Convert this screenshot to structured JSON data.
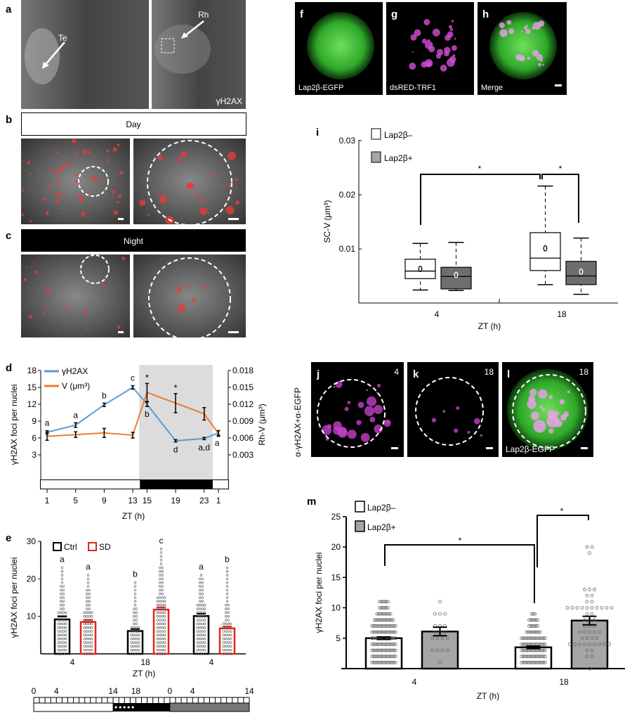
{
  "panel_letters": {
    "a": "a",
    "b": "b",
    "c": "c",
    "d": "d",
    "e": "e",
    "f": "f",
    "g": "g",
    "h": "h",
    "i": "i",
    "j": "j",
    "k": "k",
    "l": "l",
    "m": "m"
  },
  "panel_a": {
    "te": "Te",
    "rh": "Rh",
    "stain": "γH2AX"
  },
  "panel_b": {
    "label": "Day"
  },
  "panel_c": {
    "label": "Night"
  },
  "panel_fgh": {
    "f": "Lap2β-EGFP",
    "g": "dsRED-TRF1",
    "h": "Merge"
  },
  "panel_jkl": {
    "ylabel": "α-γH2AX+α-EGFP",
    "j_zt": "4",
    "k_zt": "18",
    "l_zt": "18",
    "l_label": "Lap2β-EGFP"
  },
  "colors": {
    "blue": "#5b9bd5",
    "orange": "#ed7d31",
    "red": "#e0261c",
    "gray": "#a6a6a6",
    "darkgray": "#6e6e6e",
    "shade": "#dcdcdc"
  },
  "chart_data": [
    {
      "id": "d",
      "type": "line",
      "xlabel": "ZT (h)",
      "ylabel": "γH2AX foci per nuclei",
      "y2label": "Rh-V (μm³)",
      "x": [
        1,
        5,
        9,
        13,
        15,
        19,
        23,
        25
      ],
      "xticklabels": [
        "1",
        "5",
        "9",
        "13",
        "15",
        "19",
        "23",
        "1"
      ],
      "ylim": [
        0,
        18
      ],
      "yticks": [
        3,
        6,
        9,
        12,
        15,
        18
      ],
      "y2lim": [
        0,
        0.018
      ],
      "y2ticks": [
        "0.003",
        "0.006",
        "0.009",
        "0.012",
        "0.015",
        "0.018"
      ],
      "night_shade": [
        14,
        24
      ],
      "series": [
        {
          "name": "γH2AX",
          "values": [
            7,
            8.3,
            11.9,
            15,
            12,
            5.5,
            5.9,
            6.9
          ],
          "err": [
            0.3,
            0.4,
            0.3,
            0.3,
            0.4,
            0.2,
            0.2,
            0.4
          ],
          "labels": [
            "a",
            "a",
            "b",
            "c",
            "b",
            "d",
            "a,d",
            "a"
          ],
          "label_pos": [
            "above",
            "above",
            "above",
            "above",
            "below",
            "below",
            "below",
            "below"
          ]
        },
        {
          "name": "V (μm³)",
          "scale": "y2",
          "values": [
            0.0063,
            0.0066,
            0.0069,
            0.0065,
            0.0141,
            0.0122,
            0.0103,
            0.0068
          ],
          "err": [
            0.0007,
            0.0005,
            0.0008,
            0.0005,
            0.0016,
            0.0017,
            0.0011,
            0.0005
          ],
          "stars": [
            "",
            "",
            "",
            "",
            "*",
            "*",
            "",
            ""
          ]
        }
      ]
    },
    {
      "id": "e",
      "type": "bar",
      "xlabel": "ZT (h)",
      "ylabel": "γH2AX foci per nuclei",
      "categories": [
        "4",
        "18",
        "4"
      ],
      "ylim": [
        0,
        30
      ],
      "yticks": [
        10,
        20,
        30
      ],
      "series": [
        {
          "name": "Ctrl",
          "values": [
            9.2,
            6.1,
            10.1
          ],
          "err": [
            0.8,
            0.5,
            0.6
          ],
          "letters": [
            "a",
            "b",
            "a"
          ],
          "dot_max": [
            23,
            19,
            21
          ]
        },
        {
          "name": "SD",
          "values": [
            8.5,
            11.8,
            6.8
          ],
          "err": [
            0.6,
            0.6,
            0.5
          ],
          "letters": [
            "a",
            "c",
            "b"
          ],
          "dot_max": [
            21,
            28,
            23
          ]
        }
      ],
      "timeline": {
        "ticklabels": [
          "0",
          "4",
          "14",
          "18",
          "0",
          "4",
          "14"
        ]
      }
    },
    {
      "id": "i",
      "type": "box",
      "xlabel": "ZT (h)",
      "ylabel": "SC-V (μm³)",
      "categories": [
        "4",
        "18"
      ],
      "ylim": [
        0,
        0.03
      ],
      "yticks": [
        "0.01",
        "0.02",
        "0.03"
      ],
      "series": [
        {
          "name": "Lap2β–",
          "boxes": [
            {
              "min": 0.0024,
              "q1": 0.0045,
              "median": 0.0059,
              "q3": 0.0081,
              "max": 0.011,
              "mean": 0.0063
            },
            {
              "min": 0.0034,
              "q1": 0.006,
              "median": 0.0083,
              "q3": 0.013,
              "max": 0.0216,
              "mean": 0.0101
            }
          ]
        },
        {
          "name": "Lap2β+",
          "boxes": [
            {
              "min": 0.0023,
              "q1": 0.0026,
              "median": 0.0049,
              "q3": 0.0066,
              "max": 0.0112,
              "mean": 0.0052
            },
            {
              "min": 0.0016,
              "q1": 0.0034,
              "median": 0.005,
              "q3": 0.0077,
              "max": 0.012,
              "mean": 0.0058
            }
          ]
        }
      ],
      "significance": [
        "*",
        "*"
      ]
    },
    {
      "id": "m",
      "type": "bar",
      "xlabel": "ZT (h)",
      "ylabel": "γH2AX foci per nuclei",
      "categories": [
        "4",
        "18"
      ],
      "ylim": [
        0,
        25
      ],
      "yticks": [
        5,
        10,
        15,
        20,
        25
      ],
      "series": [
        {
          "name": "Lap2β–",
          "values": [
            5,
            3.5
          ],
          "err": [
            0.2,
            0.2
          ],
          "dots": [
            [
              1,
              1,
              1,
              1,
              1,
              2,
              2,
              2,
              2,
              2,
              3,
              3,
              3,
              3,
              3,
              4,
              4,
              4,
              4,
              4,
              4,
              5,
              5,
              5,
              5,
              5,
              6,
              6,
              6,
              6,
              6,
              7,
              7,
              7,
              7,
              7,
              8,
              8,
              8,
              8,
              9,
              9,
              9,
              10,
              10,
              11,
              11
            ],
            [
              1,
              1,
              1,
              1,
              1,
              1,
              2,
              2,
              2,
              2,
              2,
              3,
              3,
              3,
              3,
              3,
              3,
              4,
              4,
              4,
              4,
              4,
              4,
              5,
              5,
              5,
              5,
              5,
              6,
              6,
              6,
              7,
              7,
              8,
              8,
              9
            ]
          ]
        },
        {
          "name": "Lap2β+",
          "values": [
            6.1,
            7.9
          ],
          "err": [
            0.7,
            0.7
          ],
          "dots": [
            [
              1,
              3,
              3,
              3,
              3,
              5,
              5,
              5,
              5,
              6,
              6,
              6,
              7,
              7,
              7,
              9,
              9,
              9,
              11
            ],
            [
              0,
              2,
              2,
              3,
              3,
              4,
              4,
              4,
              4,
              4,
              4,
              4,
              4,
              4,
              5,
              5,
              5,
              5,
              6,
              6,
              6,
              6,
              6,
              7,
              7,
              7,
              8,
              8,
              8,
              9,
              9,
              10,
              10,
              10,
              10,
              10,
              10,
              10,
              10,
              10,
              10,
              11,
              11,
              12,
              12,
              13,
              13,
              13,
              19,
              20,
              20
            ]
          ]
        }
      ],
      "significance": [
        "*",
        "*"
      ]
    }
  ]
}
